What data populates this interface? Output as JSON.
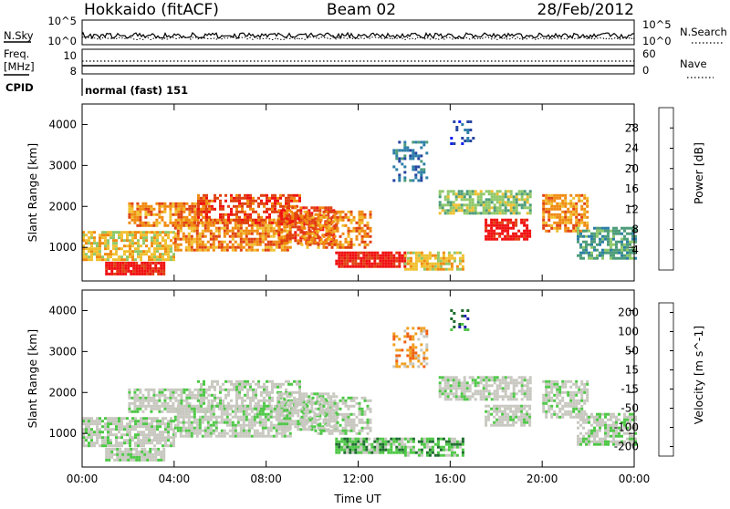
{
  "header": {
    "station": "Hokkaido (fitACF)",
    "beam": "Beam 02",
    "date": "28/Feb/2012"
  },
  "noise_panel": {
    "left_label": "N.Sky",
    "right_label": "N.Search",
    "left_ticks": [
      "10^5",
      "10^0"
    ],
    "right_ticks": [
      "10^5",
      "10^0"
    ]
  },
  "freq_panel": {
    "left_label_1": "Freq.",
    "left_label_2": "[MHz]",
    "right_label": "Nave",
    "left_ticks": [
      "10",
      "8"
    ],
    "right_ticks": [
      "60",
      "0"
    ]
  },
  "cpid_panel": {
    "label": "CPID",
    "mode_text": "normal (fast) 151"
  },
  "colors": {
    "power": [
      "#0a1cf0",
      "#2345a0",
      "#2c7ea8",
      "#4d9c7a",
      "#8fc86a",
      "#f0c030",
      "#f08a10",
      "#e04010",
      "#f01010"
    ],
    "velocity": [
      "#2020b0",
      "#1e6c2e",
      "#4ec846",
      "#c8c8c0",
      "#c8c8c0",
      "#f0a020",
      "#f06010",
      "#f01010"
    ],
    "background": "#ffffff"
  },
  "chart_data": [
    {
      "type": "heatmap",
      "name": "power",
      "ylabel": "Slant Range [km]",
      "xlabel": "",
      "x_ticks": [
        "00:00",
        "04:00",
        "08:00",
        "12:00",
        "16:00",
        "20:00",
        "00:00"
      ],
      "x_range_hours": [
        0,
        24
      ],
      "y_ticks": [
        1000,
        2000,
        3000,
        4000
      ],
      "ylim": [
        180,
        4500
      ],
      "colorbar": {
        "label": "Power [dB]",
        "ticks": [
          4,
          8,
          12,
          16,
          20,
          24,
          28
        ],
        "range": [
          0,
          32
        ]
      }
    },
    {
      "type": "heatmap",
      "name": "velocity",
      "ylabel": "Slant Range [km]",
      "xlabel": "Time UT",
      "x_ticks": [
        "00:00",
        "04:00",
        "08:00",
        "12:00",
        "16:00",
        "20:00",
        "00:00"
      ],
      "x_range_hours": [
        0,
        24
      ],
      "y_ticks": [
        1000,
        2000,
        3000,
        4000
      ],
      "ylim": [
        180,
        4500
      ],
      "colorbar": {
        "label": "Velocity [m s^-1]",
        "ticks": [
          200,
          100,
          50,
          15,
          -15,
          -50,
          -100,
          -200
        ]
      }
    }
  ]
}
